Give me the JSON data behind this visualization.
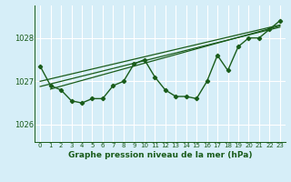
{
  "title": "Graphe pression niveau de la mer (hPa)",
  "bg_color": "#d6eef8",
  "plot_bg_color": "#d6eef8",
  "line_color": "#1a5c1a",
  "grid_color": "#ffffff",
  "xlim": [
    -0.5,
    23.5
  ],
  "ylim": [
    1025.6,
    1028.75
  ],
  "yticks": [
    1026,
    1027,
    1028
  ],
  "xticks": [
    0,
    1,
    2,
    3,
    4,
    5,
    6,
    7,
    8,
    9,
    10,
    11,
    12,
    13,
    14,
    15,
    16,
    17,
    18,
    19,
    20,
    21,
    22,
    23
  ],
  "hours": [
    0,
    1,
    2,
    3,
    4,
    5,
    6,
    7,
    8,
    9,
    10,
    11,
    12,
    13,
    14,
    15,
    16,
    17,
    18,
    19,
    20,
    21,
    22,
    23
  ],
  "pressure": [
    1027.35,
    1026.9,
    1026.8,
    1026.55,
    1026.5,
    1026.6,
    1026.6,
    1026.9,
    1027.0,
    1027.4,
    1027.5,
    1027.1,
    1026.8,
    1026.65,
    1026.65,
    1026.6,
    1027.0,
    1027.6,
    1027.25,
    1027.8,
    1028.0,
    1028.0,
    1028.2,
    1028.4
  ],
  "trend1_x": [
    0,
    23
  ],
  "trend1_y": [
    1026.88,
    1028.25
  ],
  "trend2_x": [
    0,
    23
  ],
  "trend2_y": [
    1027.0,
    1028.3
  ],
  "trend3_x": [
    1,
    23
  ],
  "trend3_y": [
    1026.82,
    1028.28
  ]
}
